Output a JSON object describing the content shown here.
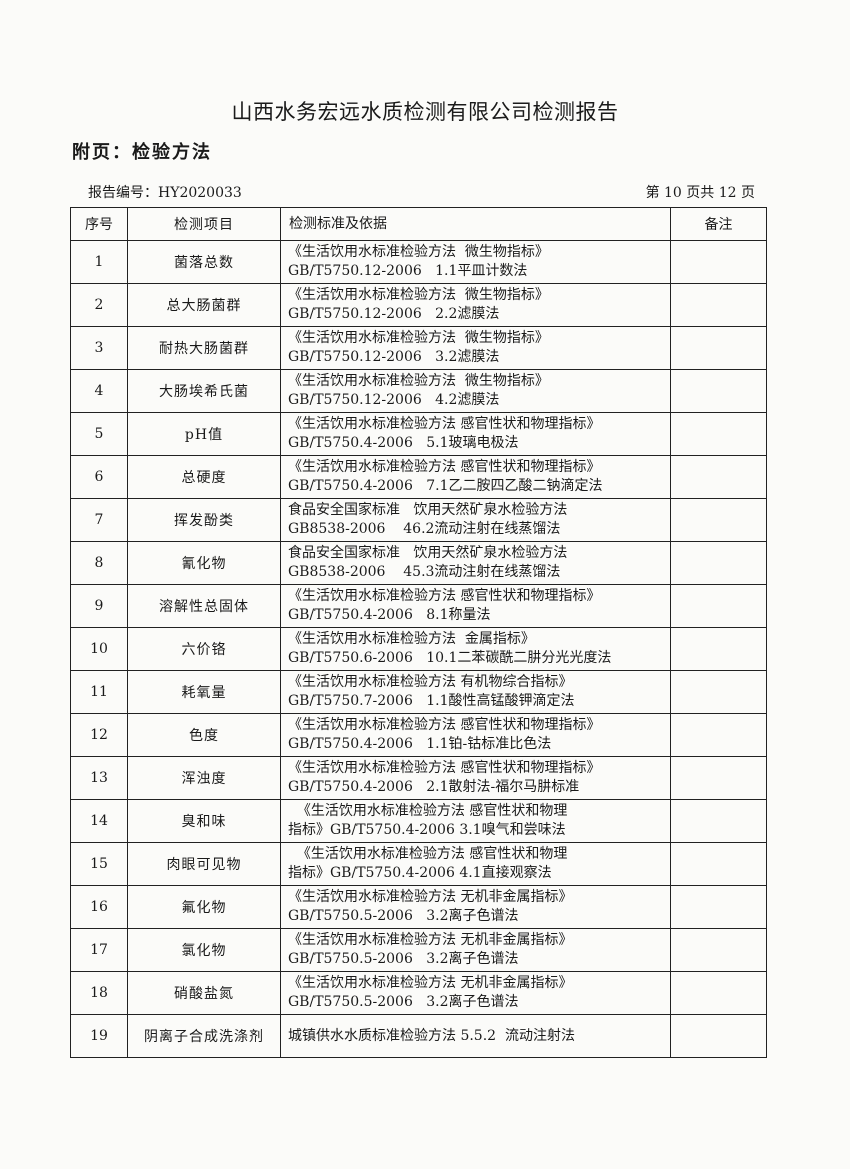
{
  "header": {
    "title": "山西水务宏远水质检测有限公司检测报告",
    "subtitle": "附页：检验方法",
    "report_no": "报告编号：HY2020033",
    "page_info": "第 10 页共 12 页"
  },
  "table": {
    "columns": [
      "序号",
      "检测项目",
      "检测标准及依据",
      "备注"
    ],
    "rows": [
      {
        "no": "1",
        "item": "菌落总数",
        "std1": "《生活饮用水标准检验方法  微生物指标》",
        "std2": "GB/T5750.12-2006   1.1平皿计数法",
        "remark": ""
      },
      {
        "no": "2",
        "item": "总大肠菌群",
        "std1": "《生活饮用水标准检验方法  微生物指标》",
        "std2": "GB/T5750.12-2006   2.2滤膜法",
        "remark": ""
      },
      {
        "no": "3",
        "item": "耐热大肠菌群",
        "std1": "《生活饮用水标准检验方法  微生物指标》",
        "std2": "GB/T5750.12-2006   3.2滤膜法",
        "remark": ""
      },
      {
        "no": "4",
        "item": "大肠埃希氏菌",
        "std1": "《生活饮用水标准检验方法  微生物指标》",
        "std2": "GB/T5750.12-2006   4.2滤膜法",
        "remark": ""
      },
      {
        "no": "5",
        "item": "pH值",
        "std1": "《生活饮用水标准检验方法 感官性状和物理指标》",
        "std2": "GB/T5750.4-2006   5.1玻璃电极法",
        "remark": ""
      },
      {
        "no": "6",
        "item": "总硬度",
        "std1": "《生活饮用水标准检验方法 感官性状和物理指标》",
        "std2": "GB/T5750.4-2006   7.1乙二胺四乙酸二钠滴定法",
        "remark": ""
      },
      {
        "no": "7",
        "item": "挥发酚类",
        "std1": "食品安全国家标准   饮用天然矿泉水检验方法",
        "std2": "GB8538-2006    46.2流动注射在线蒸馏法",
        "remark": ""
      },
      {
        "no": "8",
        "item": "氰化物",
        "std1": "食品安全国家标准   饮用天然矿泉水检验方法",
        "std2": "GB8538-2006    45.3流动注射在线蒸馏法",
        "remark": ""
      },
      {
        "no": "9",
        "item": "溶解性总固体",
        "std1": "《生活饮用水标准检验方法 感官性状和物理指标》",
        "std2": "GB/T5750.4-2006   8.1称量法",
        "remark": ""
      },
      {
        "no": "10",
        "item": "六价铬",
        "std1": "《生活饮用水标准检验方法  金属指标》",
        "std2": "GB/T5750.6-2006   10.1二苯碳酰二肼分光光度法",
        "remark": ""
      },
      {
        "no": "11",
        "item": "耗氧量",
        "std1": "《生活饮用水标准检验方法 有机物综合指标》",
        "std2": "GB/T5750.7-2006   1.1酸性高锰酸钾滴定法",
        "remark": ""
      },
      {
        "no": "12",
        "item": "色度",
        "std1": "《生活饮用水标准检验方法 感官性状和物理指标》",
        "std2": "GB/T5750.4-2006   1.1铂-钴标准比色法",
        "remark": ""
      },
      {
        "no": "13",
        "item": "浑浊度",
        "std1": "《生活饮用水标准检验方法 感官性状和物理指标》",
        "std2": "GB/T5750.4-2006   2.1散射法-福尔马肼标准",
        "remark": ""
      },
      {
        "no": "14",
        "item": "臭和味",
        "std1": "  《生活饮用水标准检验方法 感官性状和物理",
        "std2": "指标》GB/T5750.4-2006 3.1嗅气和尝味法",
        "remark": ""
      },
      {
        "no": "15",
        "item": "肉眼可见物",
        "std1": "  《生活饮用水标准检验方法 感官性状和物理",
        "std2": "指标》GB/T5750.4-2006 4.1直接观察法",
        "remark": ""
      },
      {
        "no": "16",
        "item": "氟化物",
        "std1": "《生活饮用水标准检验方法 无机非金属指标》",
        "std2": "GB/T5750.5-2006   3.2离子色谱法",
        "remark": ""
      },
      {
        "no": "17",
        "item": "氯化物",
        "std1": "《生活饮用水标准检验方法 无机非金属指标》",
        "std2": "GB/T5750.5-2006   3.2离子色谱法",
        "remark": ""
      },
      {
        "no": "18",
        "item": "硝酸盐氮",
        "std1": "《生活饮用水标准检验方法 无机非金属指标》",
        "std2": "GB/T5750.5-2006   3.2离子色谱法",
        "remark": ""
      },
      {
        "no": "19",
        "item": "阴离子合成洗涤剂",
        "std1": "城镇供水水质标准检验方法 5.5.2  流动注射法",
        "std2": "",
        "remark": ""
      }
    ]
  }
}
